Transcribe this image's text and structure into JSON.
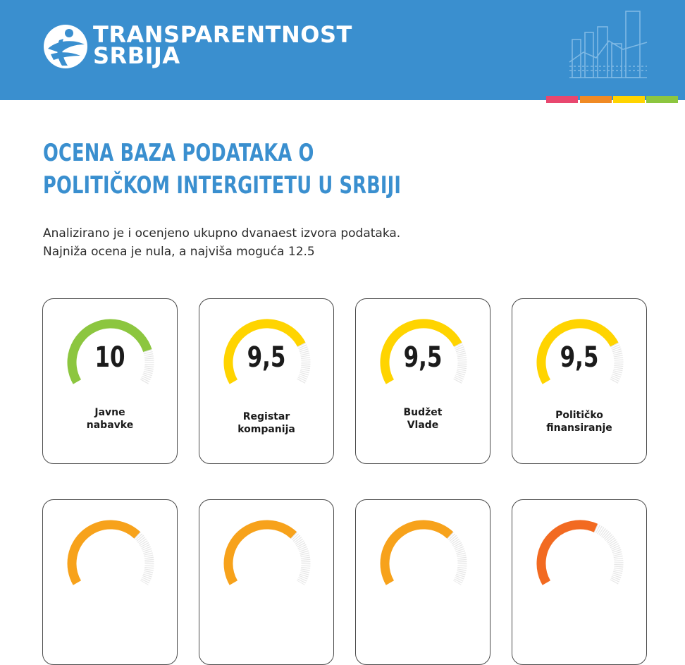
{
  "header": {
    "org_line1": "TRANSPARENTNOST",
    "org_line2": "SRBIJA",
    "logo_icon": "transparency-globe-icon",
    "decor_icon": "bar-chart-icon",
    "background": "#3a8fcf",
    "stripe_colors": [
      "#e8476f",
      "#f08a24",
      "#ffd400",
      "#8cc63f"
    ]
  },
  "title": {
    "line1": "OCENA BAZA PODATAKA O",
    "line2": "POLITIČKOM INTERGITETU U SRBIJI"
  },
  "intro": {
    "line1": "Analizirano je i ocenjeno ukupno dvanaest izvora podataka.",
    "line2": "Najniža ocena je nula, a najviša moguća 12.5"
  },
  "scale_max": 12.5,
  "cards": [
    {
      "score": 10,
      "score_label": "10",
      "label_line1": "Javne",
      "label_line2": "nabavke",
      "color": "#8cc63f"
    },
    {
      "score": 9.5,
      "score_label": "9,5",
      "label_line1": "Registar",
      "label_line2": "kompanija",
      "color": "#ffd400"
    },
    {
      "score": 9.5,
      "score_label": "9,5",
      "label_line1": "Budžet",
      "label_line2": "Vlade",
      "color": "#ffd400"
    },
    {
      "score": 9.5,
      "score_label": "9,5",
      "label_line1": "Političko",
      "label_line2": "finansiranje",
      "color": "#ffd400"
    },
    {
      "score": 8.5,
      "score_label": "",
      "label_line1": "",
      "label_line2": "",
      "color": "#f7a21b"
    },
    {
      "score": 8.5,
      "score_label": "",
      "label_line1": "",
      "label_line2": "",
      "color": "#f7a21b"
    },
    {
      "score": 8.5,
      "score_label": "",
      "label_line1": "",
      "label_line2": "",
      "color": "#f7a21b"
    },
    {
      "score": 7.5,
      "score_label": "",
      "label_line1": "",
      "label_line2": "",
      "color": "#f26a21"
    }
  ],
  "track_color": "#e6e6e6"
}
